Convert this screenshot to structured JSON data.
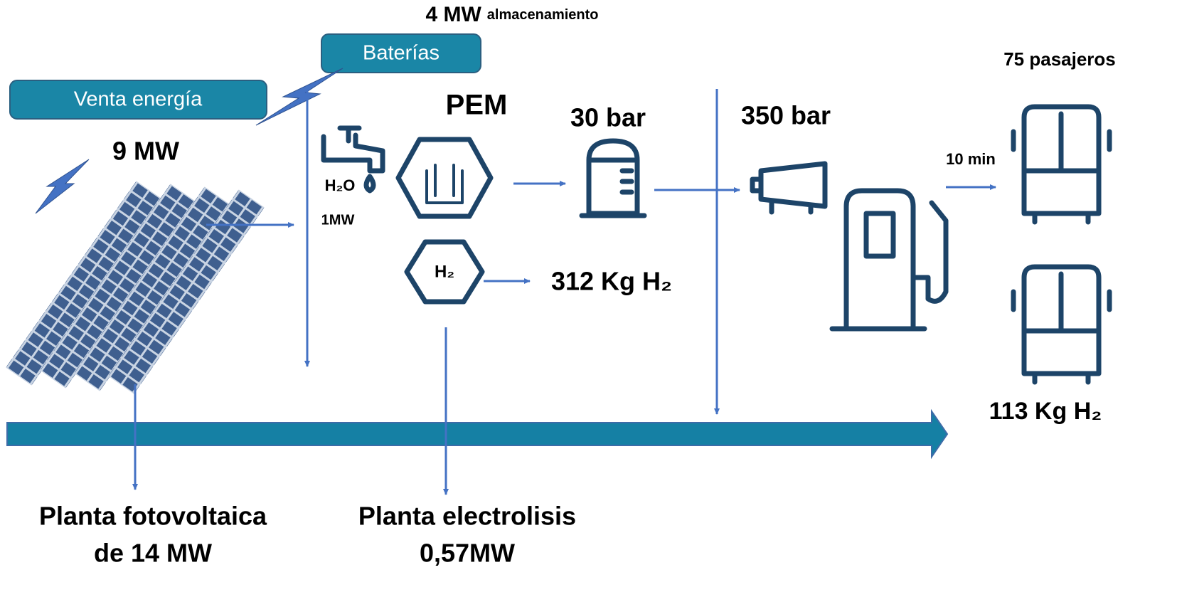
{
  "storage": {
    "capacity": "4 MW",
    "unit_label": "almacenamiento",
    "button": "Baterías"
  },
  "sale": {
    "button": "Venta energía"
  },
  "pv": {
    "output": "9 MW",
    "feed": "1MW",
    "title": [
      "Planta fotovoltaica",
      "de 14 MW"
    ]
  },
  "electrolysis": {
    "tech": "PEM",
    "water_icon": "H₂O",
    "h2_icon": "H₂",
    "production": "312 Kg H₂",
    "title": [
      "Planta electrolisis",
      "0,57MW"
    ]
  },
  "storage_tank": {
    "pressure": "30 bar"
  },
  "compressor": {
    "pressure": "350 bar"
  },
  "station": {
    "refuel_time": "10 min",
    "passengers": "75 pasajeros",
    "consumption": "113 Kg H₂"
  }
}
